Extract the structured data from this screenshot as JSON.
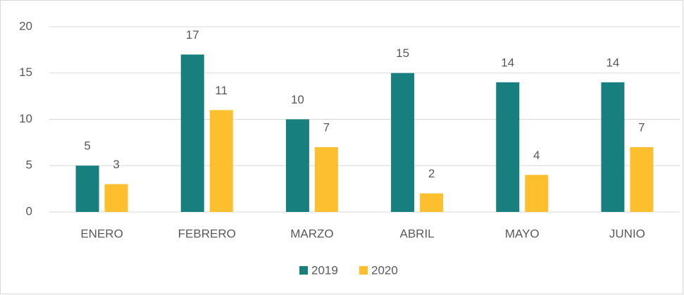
{
  "chart_data": {
    "type": "bar",
    "categories": [
      "ENERO",
      "FEBRERO",
      "MARZO",
      "ABRIL",
      "MAYO",
      "JUNIO"
    ],
    "series": [
      {
        "name": "2019",
        "color": "#17807e",
        "values": [
          5,
          17,
          10,
          15,
          14,
          14
        ]
      },
      {
        "name": "2020",
        "color": "#fdbf2d",
        "values": [
          3,
          11,
          7,
          2,
          4,
          7
        ]
      }
    ],
    "ylim": [
      0,
      20
    ],
    "yticks": [
      0,
      5,
      10,
      15,
      20
    ],
    "grid": true,
    "legend": "bottom"
  }
}
